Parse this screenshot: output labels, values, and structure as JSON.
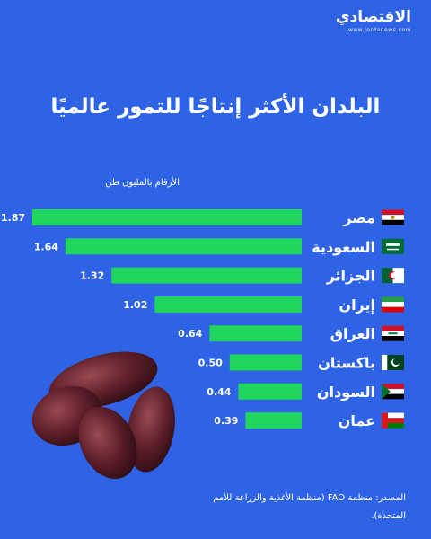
{
  "brand": {
    "name": "الاقتصادي",
    "url": "www.jordanews.com"
  },
  "colors": {
    "background": "#2f63e6",
    "bar": "#21d65d",
    "text": "#ffffff"
  },
  "chart_data": {
    "type": "bar",
    "orientation": "horizontal",
    "title": "البلدان الأكثر إنتاجًا للتمور عالميًا",
    "unit_label": "الأرقام بالمليون طن",
    "categories": [
      "مصر",
      "السعودية",
      "الجزائر",
      "إيران",
      "العراق",
      "باكستان",
      "السودان",
      "عمان"
    ],
    "flag_icons": [
      "egypt-flag-icon",
      "saudi-arabia-flag-icon",
      "algeria-flag-icon",
      "iran-flag-icon",
      "iraq-flag-icon",
      "pakistan-flag-icon",
      "sudan-flag-icon",
      "oman-flag-icon"
    ],
    "values": [
      1.87,
      1.64,
      1.32,
      1.02,
      0.64,
      0.5,
      0.44,
      0.39
    ],
    "value_labels": [
      "1.87",
      "1.64",
      "1.32",
      "1.02",
      "0.64",
      "0.50",
      "0.44",
      "0.39"
    ],
    "xlim": [
      0,
      1.87
    ],
    "grid": false,
    "legend": "none"
  },
  "source_text": "المصدر: منظمة FAO (منظمة الأغذية والزراعة للأمم المتحدة)."
}
